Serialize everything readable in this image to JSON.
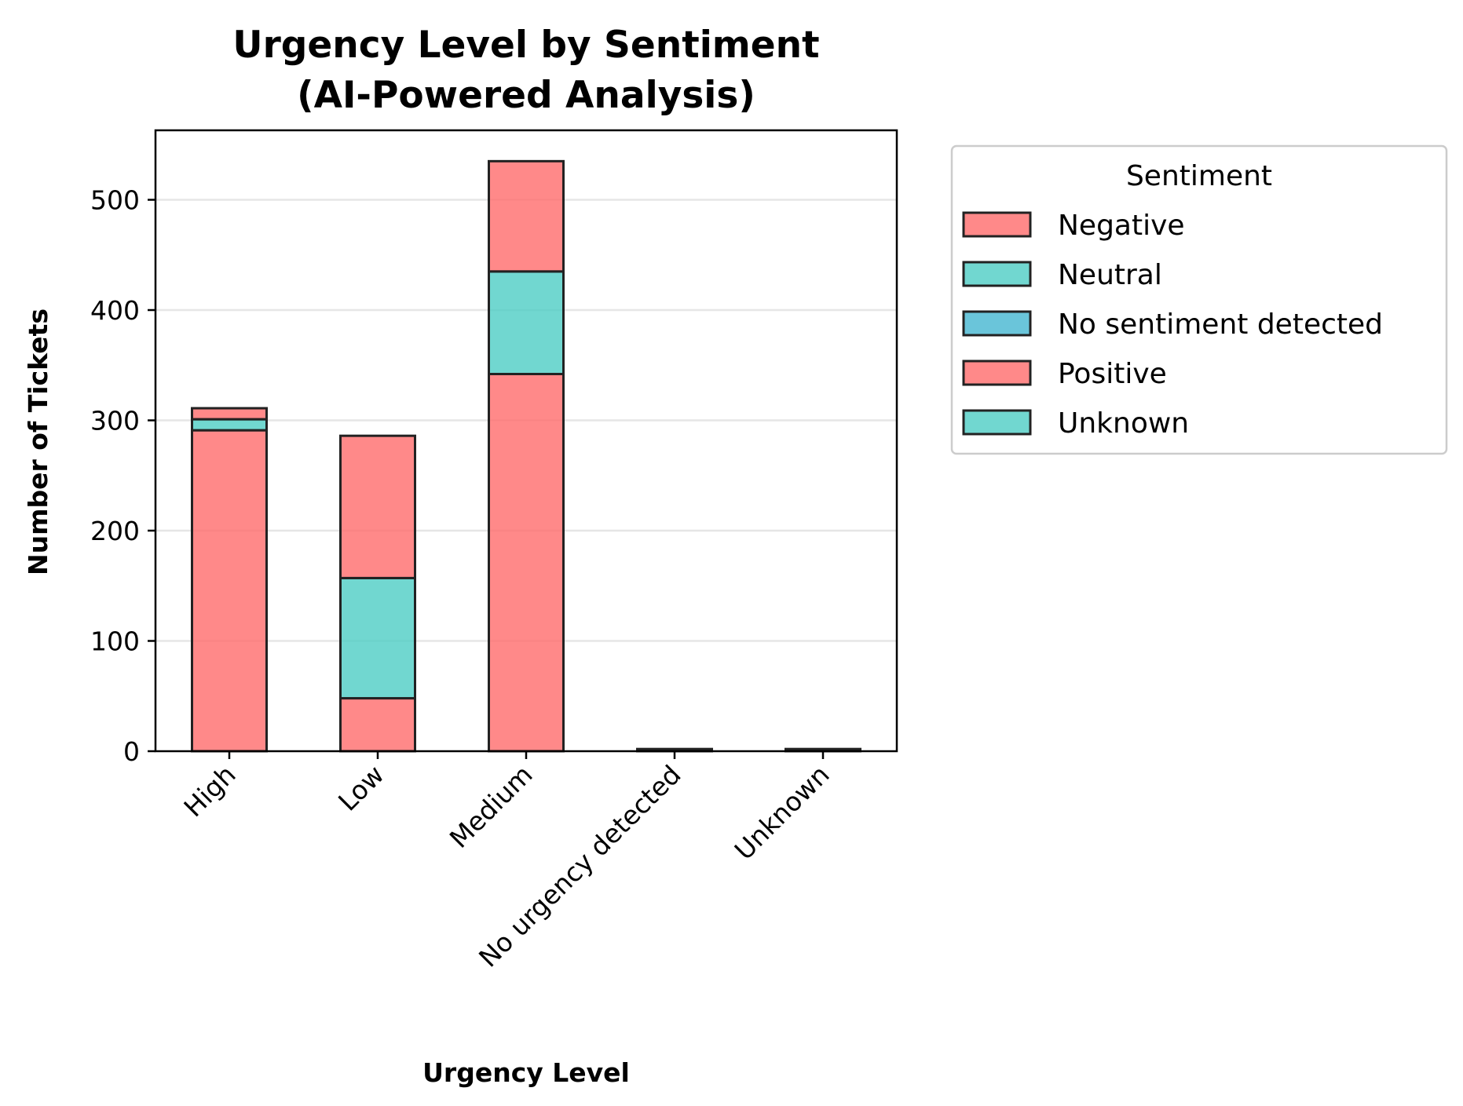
{
  "chart_data": {
    "type": "bar",
    "stacked": true,
    "title": [
      "Urgency Level by Sentiment",
      "(AI-Powered Analysis)"
    ],
    "xlabel": "Urgency Level",
    "ylabel": "Number of Tickets",
    "categories": [
      "High",
      "Low",
      "Medium",
      "No urgency detected",
      "Unknown"
    ],
    "ylim": [
      0,
      563
    ],
    "yticks": [
      0,
      100,
      200,
      300,
      400,
      500
    ],
    "grid": "y",
    "legend": {
      "title": "Sentiment",
      "placement": "outside right, top"
    },
    "series": [
      {
        "name": "Negative",
        "color": "#FF6B6B",
        "values": [
          291,
          48,
          342,
          0,
          0
        ]
      },
      {
        "name": "Neutral",
        "color": "#4ECDC4",
        "values": [
          10,
          109,
          93,
          0,
          0
        ]
      },
      {
        "name": "No sentiment detected",
        "color": "#45B7D1",
        "values": [
          0,
          0,
          0,
          2,
          0
        ]
      },
      {
        "name": "Positive",
        "color": "#FF6B6B",
        "values": [
          10,
          129,
          100,
          0,
          0
        ]
      },
      {
        "name": "Unknown",
        "color": "#4ECDC4",
        "values": [
          0,
          0,
          0,
          0,
          2
        ]
      }
    ]
  }
}
